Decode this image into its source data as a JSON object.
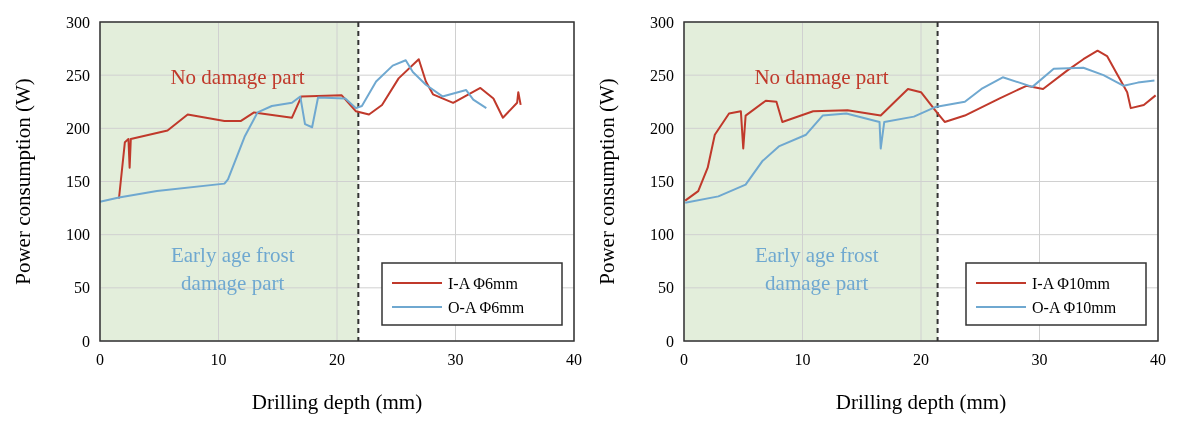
{
  "chart_data": [
    {
      "type": "line",
      "xlabel": "Drilling depth (mm)",
      "ylabel": "Power consumption (W)",
      "xlim": [
        0,
        40
      ],
      "xticks": [
        0,
        10,
        20,
        30,
        40
      ],
      "ylim": [
        0,
        300
      ],
      "yticks": [
        0,
        50,
        100,
        150,
        200,
        250,
        300
      ],
      "grid": true,
      "legend": "bottom right",
      "annotations": [
        "No damage part",
        "Early age frost damage part"
      ],
      "bands": [
        {
          "axis": "x",
          "from": 0,
          "to": 21.8,
          "color": "#e3eedb"
        }
      ],
      "ref_lines": [
        {
          "axis": "x",
          "value": 21.8,
          "color": "#333333",
          "line_style": "dashed"
        }
      ],
      "series": [
        {
          "name": "I-A Φ6mm",
          "color": "#c0392b",
          "x": [
            1.6,
            2.1,
            2.4,
            2.5,
            2.6,
            5.7,
            7.4,
            10.5,
            11.9,
            13,
            16.2,
            17,
            20.4,
            21.6,
            22.7,
            23.8,
            25.2,
            26.9,
            27.5,
            28.1,
            29.8,
            32.1,
            33.2,
            34,
            35.2,
            35.3,
            35.5
          ],
          "values": [
            134,
            187,
            190,
            163,
            190,
            198,
            213,
            207,
            207,
            215,
            210,
            230,
            231,
            216,
            213,
            222,
            247,
            265,
            244,
            232,
            224,
            238,
            228,
            210,
            224,
            234,
            222
          ]
        },
        {
          "name": "O-A Φ6mm",
          "color": "#6fa8d0",
          "x": [
            0,
            1.6,
            4.8,
            10.5,
            10.8,
            12.2,
            13.3,
            14.5,
            16.2,
            16.9,
            17.3,
            17.9,
            18.4,
            20.7,
            21.6,
            22.1,
            23.3,
            24.7,
            25.8,
            26.4,
            27.5,
            28.9,
            30.9,
            31.5,
            32.6
          ],
          "values": [
            131,
            135,
            141,
            148,
            152,
            192,
            215,
            221,
            224,
            230,
            204,
            201,
            229,
            228,
            219,
            221,
            244,
            259,
            264,
            253,
            241,
            230,
            236,
            227,
            219
          ]
        }
      ]
    },
    {
      "type": "line",
      "xlabel": "Drilling depth (mm)",
      "ylabel": "Power consumption (W)",
      "xlim": [
        0,
        40
      ],
      "xticks": [
        0,
        10,
        20,
        30,
        40
      ],
      "ylim": [
        0,
        300
      ],
      "yticks": [
        0,
        50,
        100,
        150,
        200,
        250,
        300
      ],
      "grid": true,
      "legend": "bottom right",
      "annotations": [
        "No damage part",
        "Early age frost damage part"
      ],
      "bands": [
        {
          "axis": "x",
          "from": 0,
          "to": 21.4,
          "color": "#e3eedb"
        }
      ],
      "ref_lines": [
        {
          "axis": "x",
          "value": 21.4,
          "color": "#333333",
          "line_style": "dashed"
        }
      ],
      "series": [
        {
          "name": "I-A Φ10mm",
          "color": "#c0392b",
          "x": [
            0.1,
            1.2,
            2,
            2.6,
            3.8,
            4.8,
            5,
            5.2,
            6.9,
            7.8,
            8.3,
            10.9,
            13.8,
            16.6,
            18.9,
            20,
            21.2,
            22,
            23.7,
            26.6,
            28.9,
            30.3,
            32.3,
            33.7,
            34.9,
            35.7,
            36.6,
            37.4,
            37.7,
            38.8,
            39.8
          ],
          "values": [
            132,
            141,
            163,
            194,
            214,
            216,
            181,
            212,
            226,
            225,
            206,
            216,
            217,
            212,
            237,
            234,
            217,
            206,
            212,
            228,
            240,
            237,
            254,
            265,
            273,
            268,
            250,
            234,
            219,
            222,
            231
          ]
        },
        {
          "name": "O-A Φ10mm",
          "color": "#6fa8d0",
          "x": [
            0.1,
            2.9,
            5.2,
            6.6,
            8,
            10.3,
            11.7,
            13.7,
            16.5,
            16.6,
            16.9,
            19.4,
            21.2,
            23.7,
            25.1,
            26.9,
            29.4,
            31.2,
            33.7,
            35.4,
            37.1,
            38.3,
            39.7
          ],
          "values": [
            130,
            136,
            147,
            169,
            183,
            194,
            212,
            214,
            206,
            181,
            206,
            211,
            220,
            225,
            237,
            248,
            239,
            256,
            257,
            250,
            240,
            243,
            245
          ]
        }
      ]
    }
  ]
}
